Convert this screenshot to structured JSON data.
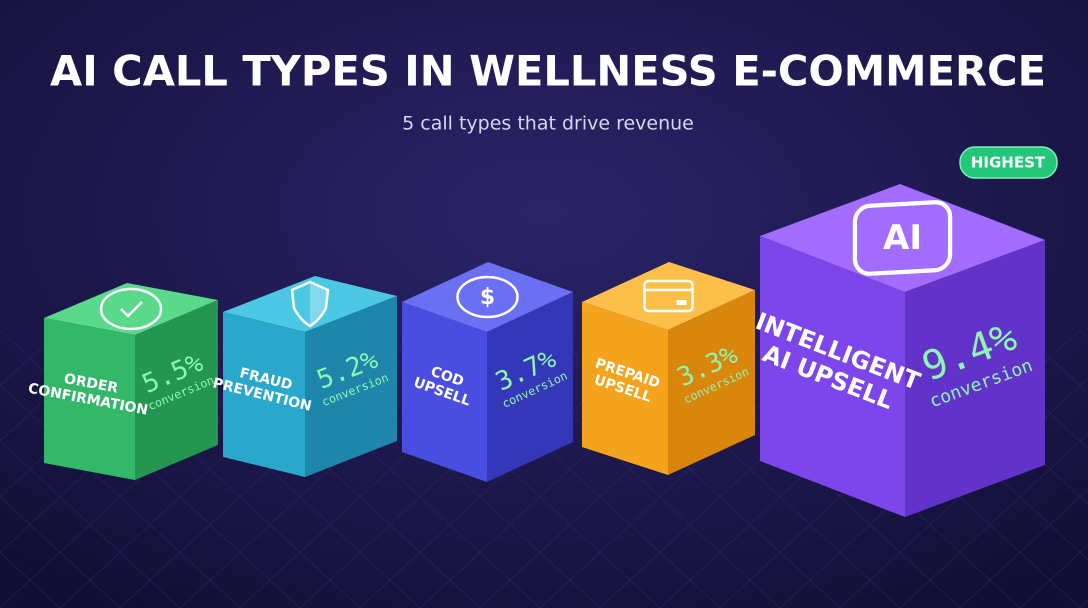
{
  "header": {
    "title": "AI CALL TYPES IN WELLNESS E-COMMERCE",
    "subtitle": "5 call types that drive revenue"
  },
  "badge": "HIGHEST",
  "items": [
    {
      "label_lines": [
        "ORDER",
        "CONFIRMATION"
      ],
      "value": "5.5%",
      "unit": "conversion"
    },
    {
      "label_lines": [
        "FRAUD",
        "PREVENTION"
      ],
      "value": "5.2%",
      "unit": "conversion"
    },
    {
      "label_lines": [
        "COD",
        "UPSELL"
      ],
      "value": "3.7%",
      "unit": "conversion"
    },
    {
      "label_lines": [
        "PREPAID",
        "UPSELL"
      ],
      "value": "3.3%",
      "unit": "conversion"
    },
    {
      "label_lines": [
        "INTELLIGENT",
        "AI UPSELL"
      ],
      "value": "9.4%",
      "unit": "conversion",
      "icon_text": "AI"
    }
  ]
}
